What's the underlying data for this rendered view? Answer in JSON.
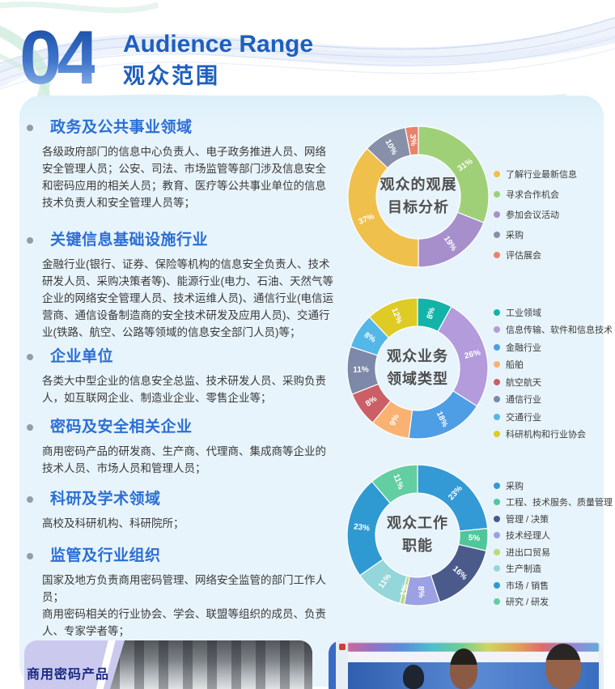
{
  "header": {
    "number": "04",
    "title_en": "Audience Range",
    "title_zh": "观众范围"
  },
  "theme": {
    "accent_blue": "#2b6fd6",
    "panel_bg": "#e8f4fb",
    "number_gradient": [
      "#1d4fa8",
      "#9dc0ee"
    ]
  },
  "sections": [
    {
      "title": "政务及公共事业领域",
      "body": "各级政府部门的信息中心负责人、电子政务推进人员、网络安全管理人员；公安、司法、市场监管等部门涉及信息安全和密码应用的相关人员；教育、医疗等公共事业单位的信息技术负责人和安全管理人员等；"
    },
    {
      "title": "关键信息基础设施行业",
      "body": "金融行业(银行、证券、保险等机构的信息安全负责人、技术研发人员、采购决策者等)、能源行业(电力、石油、天然气等企业的网络安全管理人员、技术运维人员)、通信行业(电信运营商、通信设备制造商的安全技术研发及应用人员)、交通行业(铁路、航空、公路等领域的信息安全部门人员)等；"
    },
    {
      "title": "企业单位",
      "body": "各类大中型企业的信息安全总监、技术研发人员、采购负责人，如互联网企业、制造业企业、零售企业等；"
    },
    {
      "title": "密码及安全相关企业",
      "body": "商用密码产品的研发商、生产商、代理商、集成商等企业的技术人员、市场人员和管理人员；"
    },
    {
      "title": "科研及学术领域",
      "body": "高校及科研机构、科研院所；"
    },
    {
      "title": "监管及行业组织",
      "body": "国家及地方负责商用密码管理、网络安全监管的部门工作人员；\n商用密码相关的行业协会、学会、联盟等组织的成员、负责人、专家学者等；"
    }
  ],
  "chart_data": [
    {
      "type": "donut",
      "title": "观众的观展目标分析",
      "center_label": [
        "观众的观展",
        "目标分析"
      ],
      "slices": [
        {
          "label": "了解行业最新信息",
          "value": 37,
          "color": "#F0C04C"
        },
        {
          "label": "寻求合作机会",
          "value": 31,
          "color": "#9FD077"
        },
        {
          "label": "参加会议活动",
          "value": 19,
          "color": "#A78FCB"
        },
        {
          "label": "采购",
          "value": 10,
          "color": "#8790A8"
        },
        {
          "label": "评估展会",
          "value": 3,
          "color": "#E8836B"
        }
      ],
      "draw_order": [
        1,
        2,
        0,
        3,
        4
      ],
      "legend_position": "right"
    },
    {
      "type": "donut",
      "title": "观众业务领域类型",
      "center_label": [
        "观众业务",
        "领域类型"
      ],
      "slices": [
        {
          "label": "工业领域",
          "value": 8,
          "color": "#14B3A9"
        },
        {
          "label": "信息传输、软件和信息技术",
          "value": 26,
          "color": "#B49BDC"
        },
        {
          "label": "金融行业",
          "value": 18,
          "color": "#4D9EE4"
        },
        {
          "label": "船舶",
          "value": 9,
          "color": "#F9B272"
        },
        {
          "label": "航空航天",
          "value": 8,
          "color": "#CC5F66"
        },
        {
          "label": "通信行业",
          "value": 11,
          "color": "#7E88A8"
        },
        {
          "label": "交通行业",
          "value": 8,
          "color": "#53B7E8"
        },
        {
          "label": "科研机构和行业协会",
          "value": 12,
          "color": "#DECB25"
        }
      ],
      "legend_position": "right"
    },
    {
      "type": "donut",
      "title": "观众工作职能",
      "center_label": [
        "观众工作",
        "职能"
      ],
      "slices": [
        {
          "label": "采购",
          "value": 23,
          "color": "#339AD6"
        },
        {
          "label": "工程、技术服务、质量管理",
          "value": 5,
          "color": "#4FC79B"
        },
        {
          "label": "管理 / 决策",
          "value": 16,
          "color": "#4A5A8A"
        },
        {
          "label": "技术经理人",
          "value": 8,
          "color": "#9BA1E2"
        },
        {
          "label": "进出口贸易",
          "value": 1,
          "color": "#BADA7A"
        },
        {
          "label": "生产制造",
          "value": 11,
          "color": "#94D6D9"
        },
        {
          "label": "市场 / 销售",
          "value": 23,
          "color": "#2F9AD2"
        },
        {
          "label": "研究 / 研发",
          "value": 11,
          "color": "#62CEA2"
        }
      ],
      "legend_position": "right"
    }
  ],
  "footer": {
    "left_caption": "商用密码产品"
  }
}
